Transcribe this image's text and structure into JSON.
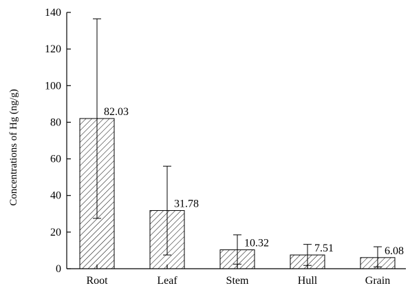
{
  "chart_data": {
    "type": "bar",
    "title": "",
    "xlabel": "",
    "ylabel": "Concentrations of Hg (ng/g)",
    "ylim": [
      0,
      140
    ],
    "yticks": [
      0,
      20,
      40,
      60,
      80,
      100,
      120,
      140
    ],
    "grid": false,
    "legend": "none",
    "bar_fill": "hatched",
    "categories": [
      "Root",
      "Leaf",
      "Stem",
      "Hull",
      "Grain"
    ],
    "values": [
      82.03,
      31.78,
      10.32,
      7.51,
      6.08
    ],
    "value_labels": [
      "82.03",
      "31.78",
      "10.32",
      "7.51",
      "6.08"
    ],
    "error_low": [
      27.5,
      7.5,
      2.5,
      1.8,
      1.0
    ],
    "error_high": [
      136.5,
      56.0,
      18.5,
      13.3,
      12.0
    ]
  }
}
